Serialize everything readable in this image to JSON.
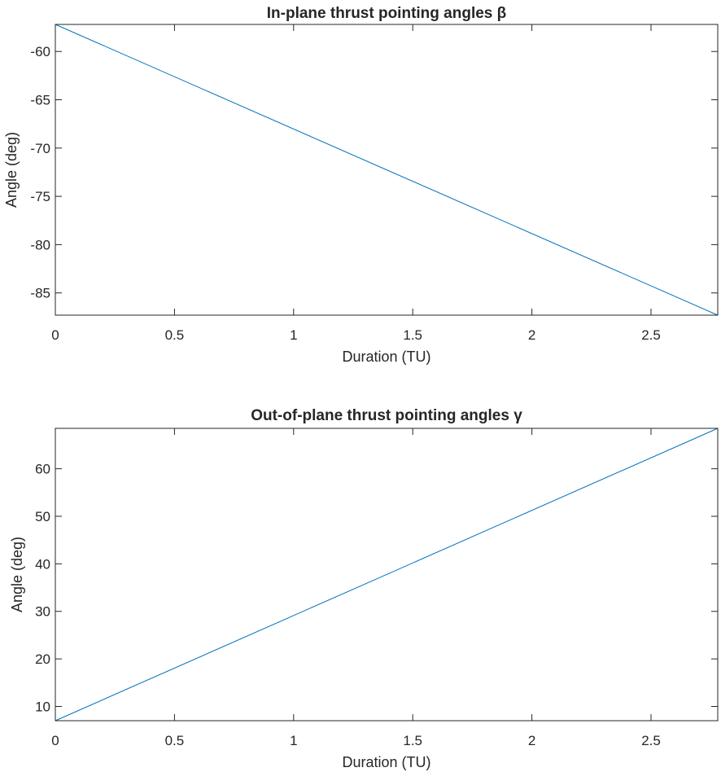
{
  "chart_data": [
    {
      "type": "line",
      "title": "In-plane thrust pointing angles β",
      "xlabel": "Duration (TU)",
      "ylabel": "Angle (deg)",
      "xlim": [
        0,
        2.78
      ],
      "ylim": [
        -87.3,
        -57.2
      ],
      "xticks": [
        0,
        0.5,
        1,
        1.5,
        2,
        2.5
      ],
      "xtick_labels": [
        "0",
        "0.5",
        "1",
        "1.5",
        "2",
        "2.5"
      ],
      "yticks": [
        -60,
        -65,
        -70,
        -75,
        -80,
        -85
      ],
      "ytick_labels": [
        "-60",
        "-65",
        "-70",
        "-75",
        "-80",
        "-85"
      ],
      "grid": false,
      "series": [
        {
          "color": "#0072BD",
          "x": [
            0,
            2.78
          ],
          "y": [
            -57.2,
            -87.3
          ]
        }
      ]
    },
    {
      "type": "line",
      "title": "Out-of-plane thrust pointing angles γ",
      "xlabel": "Duration (TU)",
      "ylabel": "Angle (deg)",
      "xlim": [
        0,
        2.78
      ],
      "ylim": [
        7,
        68.5
      ],
      "xticks": [
        0,
        0.5,
        1,
        1.5,
        2,
        2.5
      ],
      "xtick_labels": [
        "0",
        "0.5",
        "1",
        "1.5",
        "2",
        "2.5"
      ],
      "yticks": [
        10,
        20,
        30,
        40,
        50,
        60
      ],
      "ytick_labels": [
        "10",
        "20",
        "30",
        "40",
        "50",
        "60"
      ],
      "grid": false,
      "series": [
        {
          "color": "#0072BD",
          "x": [
            0,
            2.78
          ],
          "y": [
            7,
            68.5
          ]
        }
      ]
    }
  ]
}
